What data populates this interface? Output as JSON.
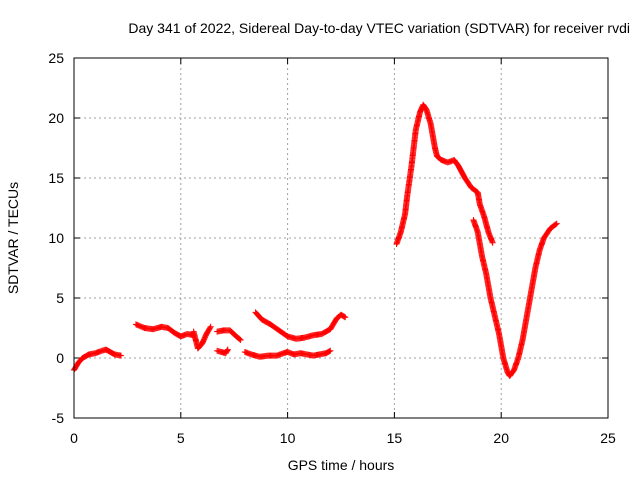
{
  "chart_data": {
    "type": "scatter",
    "title": "Day 341 of 2022, Sidereal Day-to-day VTEC variation (SDTVAR) for receiver rvdi",
    "xlabel": "GPS time / hours",
    "ylabel": "SDTVAR / TECUs",
    "xlim": [
      0,
      25
    ],
    "ylim": [
      -5,
      25
    ],
    "xticks": [
      0,
      5,
      10,
      15,
      20,
      25
    ],
    "yticks": [
      -5,
      0,
      5,
      10,
      15,
      20,
      25
    ],
    "grid": true,
    "marker": "plus",
    "color": "#ff0000",
    "series": [
      {
        "name": "SDTVAR",
        "segments": [
          [
            [
              0.0,
              -1.0
            ],
            [
              0.2,
              -0.4
            ],
            [
              0.4,
              0.0
            ],
            [
              0.7,
              0.3
            ],
            [
              1.0,
              0.4
            ],
            [
              1.3,
              0.6
            ],
            [
              1.5,
              0.7
            ],
            [
              1.7,
              0.5
            ],
            [
              1.9,
              0.3
            ],
            [
              2.2,
              0.2
            ]
          ],
          [
            [
              2.9,
              2.8
            ],
            [
              3.3,
              2.5
            ],
            [
              3.7,
              2.4
            ],
            [
              4.1,
              2.6
            ],
            [
              4.4,
              2.5
            ],
            [
              4.7,
              2.1
            ],
            [
              5.0,
              1.8
            ],
            [
              5.3,
              2.0
            ],
            [
              5.6,
              1.9
            ]
          ],
          [
            [
              5.6,
              2.2
            ],
            [
              5.8,
              0.8
            ],
            [
              6.0,
              1.2
            ],
            [
              6.2,
              2.0
            ],
            [
              6.4,
              2.6
            ]
          ],
          [
            [
              6.7,
              0.6
            ],
            [
              6.9,
              0.5
            ],
            [
              7.1,
              0.4
            ],
            [
              7.2,
              0.7
            ]
          ],
          [
            [
              6.7,
              2.2
            ],
            [
              7.0,
              2.3
            ],
            [
              7.3,
              2.3
            ],
            [
              7.6,
              1.8
            ],
            [
              7.8,
              1.5
            ]
          ],
          [
            [
              8.0,
              0.5
            ],
            [
              8.3,
              0.3
            ],
            [
              8.7,
              0.1
            ],
            [
              9.1,
              0.2
            ],
            [
              9.5,
              0.2
            ],
            [
              9.8,
              0.4
            ],
            [
              10.0,
              0.5
            ],
            [
              10.3,
              0.3
            ],
            [
              10.6,
              0.4
            ],
            [
              10.9,
              0.3
            ],
            [
              11.2,
              0.2
            ],
            [
              11.5,
              0.3
            ],
            [
              11.8,
              0.4
            ],
            [
              12.0,
              0.6
            ]
          ],
          [
            [
              8.5,
              3.8
            ],
            [
              8.8,
              3.2
            ],
            [
              9.2,
              2.8
            ],
            [
              9.6,
              2.3
            ],
            [
              10.0,
              1.8
            ],
            [
              10.4,
              1.6
            ],
            [
              10.8,
              1.7
            ],
            [
              11.2,
              1.9
            ],
            [
              11.6,
              2.0
            ],
            [
              12.0,
              2.4
            ],
            [
              12.3,
              3.3
            ],
            [
              12.5,
              3.6
            ],
            [
              12.7,
              3.4
            ]
          ],
          [
            [
              15.1,
              9.5
            ],
            [
              15.3,
              10.5
            ],
            [
              15.5,
              12.0
            ],
            [
              15.6,
              13.5
            ],
            [
              15.8,
              16.0
            ],
            [
              16.0,
              19.0
            ],
            [
              16.2,
              20.5
            ],
            [
              16.35,
              21.1
            ],
            [
              16.5,
              20.7
            ],
            [
              16.7,
              19.5
            ],
            [
              16.9,
              17.5
            ],
            [
              17.0,
              16.8
            ],
            [
              17.2,
              16.5
            ],
            [
              17.5,
              16.3
            ],
            [
              17.8,
              16.5
            ],
            [
              18.0,
              16.0
            ],
            [
              18.3,
              15.0
            ],
            [
              18.6,
              14.2
            ],
            [
              18.9,
              13.8
            ],
            [
              19.0,
              12.8
            ],
            [
              19.2,
              11.8
            ],
            [
              19.4,
              10.5
            ],
            [
              19.6,
              9.6
            ]
          ],
          [
            [
              18.7,
              11.5
            ],
            [
              18.9,
              10.5
            ],
            [
              19.1,
              8.5
            ],
            [
              19.3,
              7.0
            ],
            [
              19.5,
              5.0
            ],
            [
              19.7,
              3.5
            ],
            [
              19.9,
              2.0
            ],
            [
              20.1,
              0.0
            ],
            [
              20.3,
              -1.2
            ],
            [
              20.4,
              -1.5
            ],
            [
              20.6,
              -1.0
            ],
            [
              20.8,
              0.0
            ],
            [
              21.0,
              1.5
            ],
            [
              21.2,
              3.5
            ],
            [
              21.4,
              5.5
            ],
            [
              21.6,
              7.5
            ],
            [
              21.8,
              9.0
            ],
            [
              22.0,
              10.0
            ],
            [
              22.3,
              10.8
            ],
            [
              22.6,
              11.2
            ]
          ]
        ]
      }
    ]
  }
}
